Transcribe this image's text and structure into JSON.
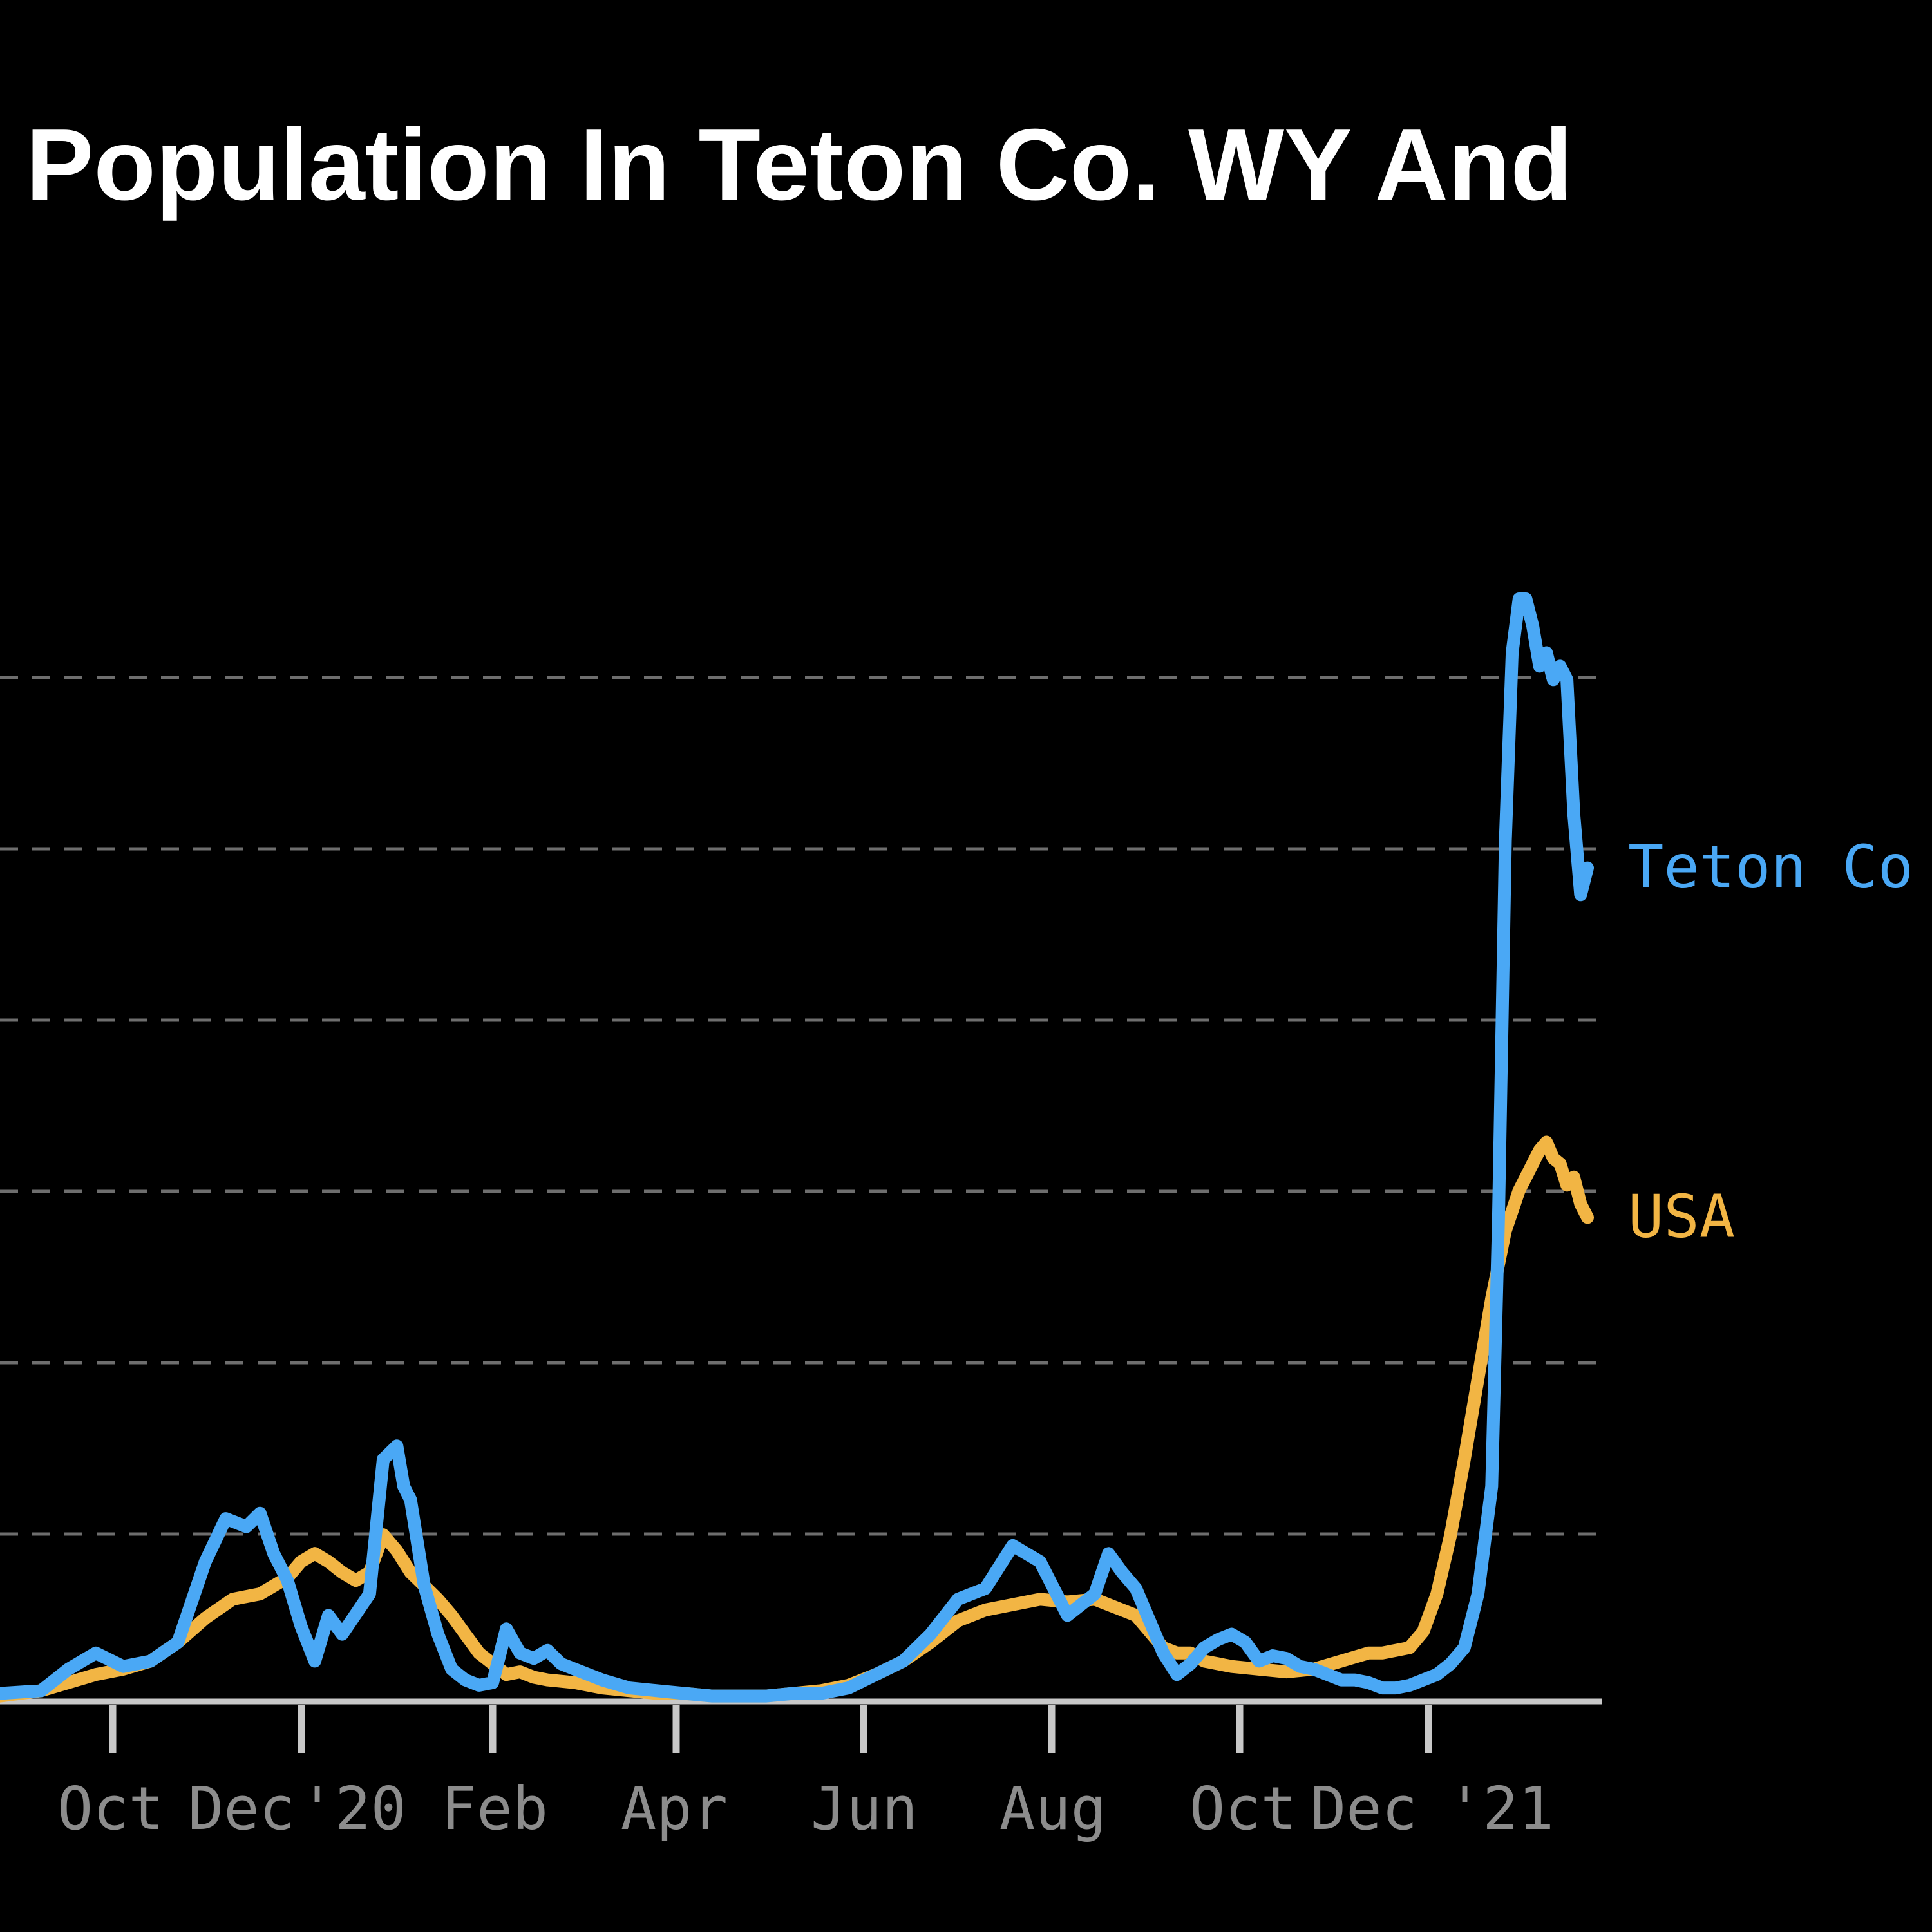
{
  "chart_data": {
    "type": "line",
    "title": "Population In Teton Co. WY And",
    "x_tick_labels": [
      "Oct",
      "Dec",
      "'20",
      "Feb",
      "Apr",
      "Jun",
      "Aug",
      "Oct",
      "Dec",
      "'21"
    ],
    "grid": "horizontal dashed",
    "series": [
      {
        "name": "Teton Co",
        "color": "#4aa8f5",
        "x": [
          0,
          6,
          10,
          14,
          18,
          22,
          26,
          30,
          33,
          36,
          38,
          40,
          42,
          44,
          46,
          48,
          50,
          54,
          56,
          58,
          59,
          60,
          62,
          64,
          66,
          68,
          70,
          72,
          74,
          76,
          78,
          80,
          82,
          84,
          88,
          92,
          96,
          100,
          104,
          108,
          112,
          116,
          120,
          124,
          128,
          132,
          136,
          140,
          144,
          148,
          152,
          156,
          160,
          162,
          164,
          166,
          168,
          170,
          172,
          174,
          176,
          178,
          180,
          182,
          184,
          186,
          188,
          190,
          192,
          194,
          196,
          198,
          200,
          202,
          204,
          206,
          208,
          210,
          212,
          214,
          216,
          218,
          219,
          220,
          221,
          222,
          223,
          224,
          225,
          226,
          227,
          228,
          229,
          230,
          231,
          232
        ],
        "y": [
          0.3,
          0.4,
          1.2,
          1.8,
          1.3,
          1.5,
          2.2,
          5.2,
          6.8,
          6.5,
          7.0,
          5.5,
          4.5,
          2.8,
          1.5,
          3.2,
          2.5,
          4.0,
          9.0,
          9.5,
          8.0,
          7.5,
          4.3,
          2.5,
          1.2,
          0.8,
          0.6,
          0.7,
          2.7,
          1.8,
          1.6,
          1.9,
          1.4,
          1.2,
          0.8,
          0.5,
          0.4,
          0.3,
          0.2,
          0.2,
          0.2,
          0.3,
          0.3,
          0.5,
          1.0,
          1.5,
          2.5,
          3.8,
          4.2,
          5.8,
          5.2,
          3.2,
          4.0,
          5.5,
          4.8,
          4.2,
          3.0,
          1.8,
          1.0,
          1.4,
          2.0,
          2.3,
          2.5,
          2.2,
          1.5,
          1.7,
          1.6,
          1.3,
          1.2,
          1.0,
          0.8,
          0.8,
          0.7,
          0.5,
          0.5,
          0.6,
          0.8,
          1.0,
          1.4,
          2.0,
          4.0,
          8.0,
          18.0,
          32.0,
          39.0,
          41.0,
          41.0,
          40.0,
          38.5,
          39.0,
          38.0,
          38.5,
          38.0,
          33.0,
          30.0,
          31.0
        ]
      },
      {
        "name": "USA",
        "color": "#f2b544",
        "x": [
          0,
          6,
          10,
          14,
          18,
          22,
          26,
          30,
          34,
          38,
          42,
          44,
          46,
          48,
          50,
          52,
          54,
          56,
          58,
          60,
          62,
          64,
          66,
          68,
          70,
          72,
          74,
          76,
          78,
          80,
          84,
          88,
          92,
          96,
          100,
          104,
          108,
          112,
          116,
          120,
          124,
          128,
          132,
          136,
          140,
          144,
          148,
          152,
          156,
          160,
          162,
          164,
          166,
          168,
          170,
          172,
          174,
          176,
          178,
          180,
          184,
          188,
          192,
          196,
          200,
          202,
          204,
          206,
          208,
          210,
          212,
          214,
          216,
          218,
          220,
          222,
          223,
          224,
          225,
          226,
          227,
          228,
          229,
          230,
          231,
          232
        ],
        "y": [
          0.2,
          0.4,
          0.7,
          1.0,
          1.2,
          1.5,
          2.2,
          3.1,
          3.8,
          4.0,
          4.6,
          5.2,
          5.5,
          5.2,
          4.8,
          4.5,
          4.8,
          6.2,
          5.6,
          4.8,
          4.3,
          3.8,
          3.2,
          2.5,
          1.8,
          1.4,
          1.0,
          1.1,
          0.9,
          0.8,
          0.7,
          0.5,
          0.4,
          0.3,
          0.3,
          0.2,
          0.2,
          0.2,
          0.3,
          0.4,
          0.6,
          1.0,
          1.5,
          2.2,
          3.0,
          3.4,
          3.6,
          3.8,
          3.7,
          3.8,
          3.6,
          3.4,
          3.2,
          2.6,
          2.0,
          1.8,
          1.8,
          1.5,
          1.4,
          1.3,
          1.2,
          1.1,
          1.2,
          1.5,
          1.8,
          1.8,
          1.9,
          2.0,
          2.6,
          4.0,
          6.2,
          9.0,
          12.0,
          15.0,
          17.5,
          19.0,
          19.5,
          20.0,
          20.5,
          20.8,
          20.2,
          20.0,
          19.2,
          19.5,
          18.5,
          18.0
        ]
      }
    ]
  }
}
